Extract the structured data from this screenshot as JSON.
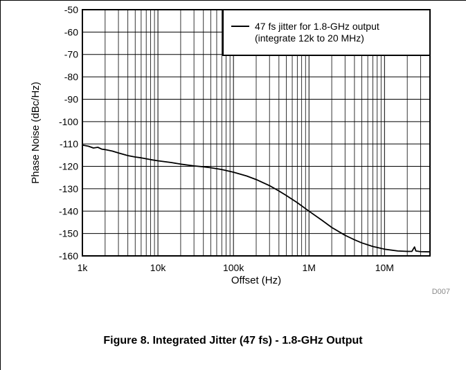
{
  "chart_data": {
    "type": "line",
    "xscale": "log",
    "xlim": [
      1000,
      40000000
    ],
    "ylim": [
      -160,
      -50
    ],
    "xlabel": "Offset (Hz)",
    "ylabel": "Phase Noise (dBc/Hz)",
    "xticks": [
      {
        "value": 1000,
        "label": "1k"
      },
      {
        "value": 10000,
        "label": "10k"
      },
      {
        "value": 100000,
        "label": "100k"
      },
      {
        "value": 1000000,
        "label": "1M"
      },
      {
        "value": 10000000,
        "label": "10M"
      }
    ],
    "yticks": [
      -50,
      -60,
      -70,
      -80,
      -90,
      -100,
      -110,
      -120,
      -130,
      -140,
      -150,
      -160
    ],
    "grid": true,
    "legend_position": "top-right",
    "series": [
      {
        "name": "47 fs jitter for 1.8-GHz output",
        "name_line2": "(integrate 12k to 20 MHz)",
        "color": "#000000",
        "points": [
          [
            1000,
            -110.5
          ],
          [
            1200,
            -111.0
          ],
          [
            1400,
            -111.8
          ],
          [
            1600,
            -111.5
          ],
          [
            1800,
            -112.3
          ],
          [
            2000,
            -112.5
          ],
          [
            2500,
            -113.2
          ],
          [
            3000,
            -114.0
          ],
          [
            4000,
            -115.2
          ],
          [
            5000,
            -115.8
          ],
          [
            6000,
            -116.2
          ],
          [
            8000,
            -117.0
          ],
          [
            10000,
            -117.5
          ],
          [
            15000,
            -118.3
          ],
          [
            20000,
            -119.0
          ],
          [
            30000,
            -119.8
          ],
          [
            40000,
            -120.2
          ],
          [
            50000,
            -120.6
          ],
          [
            70000,
            -121.4
          ],
          [
            100000,
            -122.6
          ],
          [
            150000,
            -124.3
          ],
          [
            200000,
            -125.9
          ],
          [
            300000,
            -128.6
          ],
          [
            400000,
            -131.0
          ],
          [
            500000,
            -133.0
          ],
          [
            700000,
            -136.2
          ],
          [
            1000000,
            -140.0
          ],
          [
            1500000,
            -144.2
          ],
          [
            2000000,
            -147.3
          ],
          [
            3000000,
            -150.8
          ],
          [
            4000000,
            -152.8
          ],
          [
            5000000,
            -154.2
          ],
          [
            7000000,
            -155.8
          ],
          [
            10000000,
            -157.0
          ],
          [
            15000000,
            -157.8
          ],
          [
            20000000,
            -158.0
          ],
          [
            23000000,
            -158.0
          ],
          [
            25000000,
            -156.0
          ],
          [
            26000000,
            -157.8
          ],
          [
            30000000,
            -158.1
          ],
          [
            40000000,
            -158.2
          ]
        ]
      }
    ]
  },
  "figure_code": "D007",
  "caption": "Figure 8. Integrated Jitter (47 fs) - 1.8-GHz Output"
}
